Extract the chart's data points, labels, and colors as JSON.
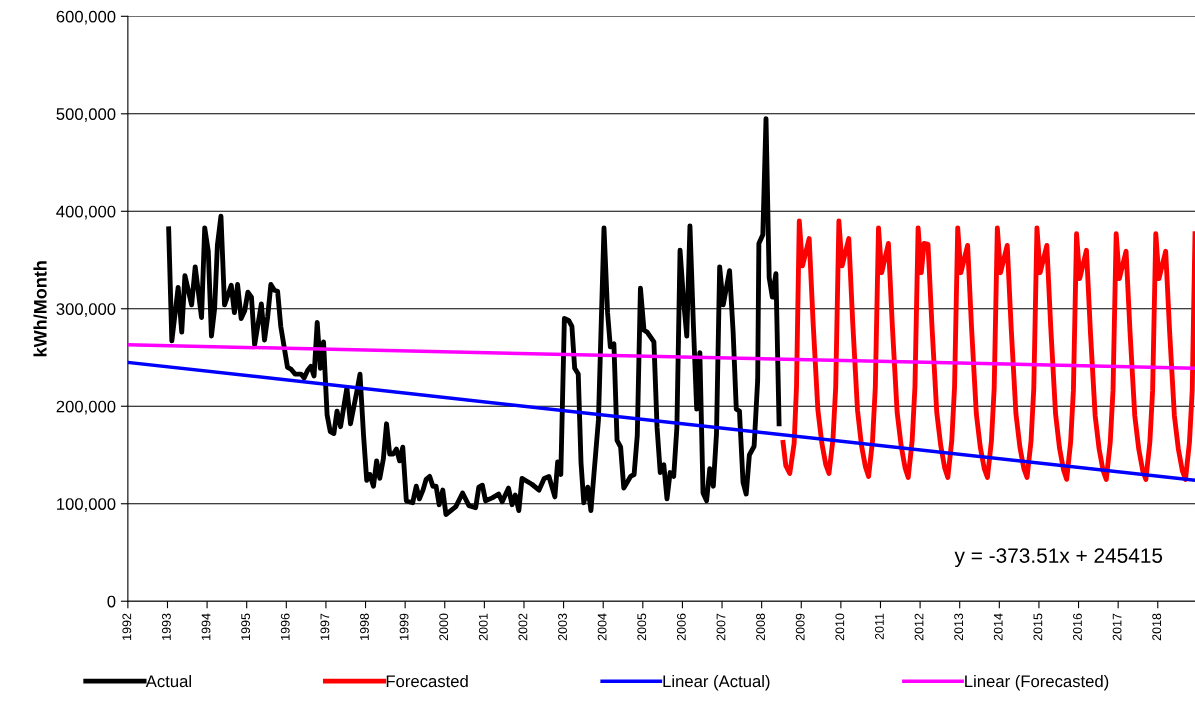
{
  "chart_data": {
    "type": "line",
    "ylabel": "kWh/Month",
    "xlim": [
      1992,
      2018.94
    ],
    "xticks": [
      1992,
      1993,
      1994,
      1995,
      1996,
      1997,
      1998,
      1999,
      2000,
      2001,
      2002,
      2003,
      2004,
      2005,
      2006,
      2007,
      2008,
      2009,
      2010,
      2011,
      2012,
      2013,
      2014,
      2015,
      2016,
      2017,
      2018
    ],
    "ylim": [
      0,
      600000
    ],
    "yticks": [
      0,
      {
        "value": 100000,
        "label": "100,000"
      },
      {
        "value": 200000,
        "label": "200,000"
      },
      {
        "value": 300000,
        "label": "300,000"
      },
      {
        "value": 400000,
        "label": "400,000"
      },
      {
        "value": 500000,
        "label": "500,000"
      },
      {
        "value": 600000,
        "label": "600,000"
      }
    ],
    "grid": "y",
    "legend": "bottom",
    "marker": "none",
    "line_style": "solid",
    "annotations": [
      "y = -373.51x + 245415"
    ],
    "series": [
      {
        "name": "Actual",
        "color": "#000000",
        "x": [
          1993.03,
          1993.11,
          1993.27,
          1993.36,
          1993.44,
          1993.61,
          1993.7,
          1993.86,
          1993.94,
          1994.03,
          1994.11,
          1994.19,
          1994.26,
          1994.35,
          1994.44,
          1994.61,
          1994.69,
          1994.77,
          1994.86,
          1994.95,
          1995.03,
          1995.12,
          1995.2,
          1995.37,
          1995.45,
          1995.53,
          1995.61,
          1995.7,
          1995.78,
          1995.86,
          1996.03,
          1996.12,
          1996.22,
          1996.37,
          1996.45,
          1996.54,
          1996.62,
          1996.7,
          1996.78,
          1996.86,
          1996.94,
          1997.03,
          1997.11,
          1997.2,
          1997.28,
          1997.37,
          1997.53,
          1997.62,
          1997.78,
          1997.86,
          1997.95,
          1998.03,
          1998.11,
          1998.2,
          1998.28,
          1998.36,
          1998.45,
          1998.53,
          1998.61,
          1998.7,
          1998.78,
          1998.86,
          1998.94,
          1999.03,
          1999.19,
          1999.28,
          1999.36,
          1999.45,
          1999.53,
          1999.62,
          1999.7,
          1999.78,
          1999.86,
          1999.95,
          2000.03,
          2000.28,
          2000.45,
          2000.61,
          2000.78,
          2000.86,
          2000.95,
          2001.03,
          2001.2,
          2001.36,
          2001.45,
          2001.61,
          2001.7,
          2001.78,
          2001.87,
          2001.95,
          2002.2,
          2002.38,
          2002.51,
          2002.63,
          2002.78,
          2002.85,
          2002.93,
          2003.02,
          2003.13,
          2003.21,
          2003.28,
          2003.37,
          2003.44,
          2003.51,
          2003.61,
          2003.69,
          2003.88,
          2004.02,
          2004.11,
          2004.18,
          2004.27,
          2004.35,
          2004.44,
          2004.52,
          2004.69,
          2004.78,
          2004.86,
          2004.94,
          2005.03,
          2005.11,
          2005.28,
          2005.36,
          2005.44,
          2005.53,
          2005.61,
          2005.69,
          2005.78,
          2005.86,
          2005.94,
          2006.03,
          2006.11,
          2006.19,
          2006.28,
          2006.36,
          2006.44,
          2006.52,
          2006.61,
          2006.69,
          2006.78,
          2006.86,
          2006.94,
          2007.03,
          2007.19,
          2007.28,
          2007.36,
          2007.44,
          2007.53,
          2007.61,
          2007.69,
          2007.81,
          2007.9,
          2007.93,
          2008.03,
          2008.11,
          2008.19,
          2008.27,
          2008.36,
          2008.44
        ],
        "values": [
          382000,
          267000,
          322000,
          276000,
          334000,
          304000,
          343000,
          291000,
          383000,
          359000,
          272000,
          300000,
          365000,
          395000,
          304000,
          324000,
          296000,
          325000,
          290000,
          298000,
          317000,
          312000,
          263000,
          305000,
          268000,
          292000,
          325000,
          319000,
          318000,
          282000,
          240000,
          238000,
          233000,
          233000,
          229000,
          237000,
          241000,
          231000,
          286000,
          239000,
          266000,
          191000,
          174000,
          172000,
          195000,
          179000,
          219000,
          182000,
          215000,
          233000,
          170000,
          124000,
          130000,
          118000,
          144000,
          126000,
          146000,
          182000,
          151000,
          151000,
          156000,
          144000,
          158000,
          103000,
          101000,
          118000,
          105000,
          114000,
          125000,
          128000,
          118000,
          118000,
          99000,
          114000,
          89000,
          97000,
          111000,
          98000,
          96000,
          117000,
          119000,
          103000,
          106000,
          110000,
          102000,
          116000,
          99000,
          109000,
          93000,
          126000,
          120000,
          114000,
          126000,
          128000,
          107000,
          143000,
          130000,
          290000,
          288000,
          282000,
          239000,
          233000,
          142000,
          101000,
          117000,
          93000,
          186000,
          383000,
          296000,
          261000,
          264000,
          165000,
          158000,
          116000,
          128000,
          130000,
          170000,
          321000,
          278000,
          276000,
          266000,
          178000,
          132000,
          140000,
          105000,
          132000,
          128000,
          178000,
          360000,
          308000,
          272000,
          385000,
          280000,
          197000,
          255000,
          111000,
          103000,
          136000,
          118000,
          172000,
          343000,
          304000,
          339000,
          276000,
          197000,
          195000,
          122000,
          110000,
          150000,
          159000,
          227000,
          367000,
          376000,
          495000,
          332000,
          312000,
          336000,
          182000
        ]
      },
      {
        "name": "Forecasted",
        "color": "#ff0000",
        "x": [
          2008.54,
          2008.61,
          2008.71,
          2008.82,
          2008.88,
          2008.95,
          2009.03,
          2009.2,
          2009.3,
          2009.42,
          2009.52,
          2009.62,
          2009.7,
          2009.8,
          2009.87,
          2009.95,
          2010.03,
          2010.2,
          2010.3,
          2010.42,
          2010.52,
          2010.62,
          2010.7,
          2010.8,
          2010.87,
          2010.95,
          2011.03,
          2011.2,
          2011.3,
          2011.42,
          2011.52,
          2011.62,
          2011.7,
          2011.8,
          2011.87,
          2011.95,
          2012.03,
          2012.1,
          2012.2,
          2012.3,
          2012.42,
          2012.52,
          2012.62,
          2012.7,
          2012.8,
          2012.87,
          2012.95,
          2013.03,
          2013.2,
          2013.3,
          2013.42,
          2013.52,
          2013.62,
          2013.7,
          2013.8,
          2013.87,
          2013.95,
          2014.03,
          2014.2,
          2014.3,
          2014.42,
          2014.52,
          2014.62,
          2014.7,
          2014.8,
          2014.87,
          2014.95,
          2015.03,
          2015.2,
          2015.3,
          2015.42,
          2015.52,
          2015.62,
          2015.7,
          2015.8,
          2015.87,
          2015.95,
          2016.03,
          2016.2,
          2016.3,
          2016.42,
          2016.52,
          2016.62,
          2016.7,
          2016.8,
          2016.87,
          2016.95,
          2017.03,
          2017.2,
          2017.3,
          2017.42,
          2017.52,
          2017.62,
          2017.7,
          2017.8,
          2017.87,
          2017.95,
          2018.03,
          2018.2,
          2018.3,
          2018.42,
          2018.52,
          2018.62,
          2018.7,
          2018.8,
          2018.87,
          2018.94
        ],
        "values": [
          163000,
          139000,
          131000,
          162000,
          220000,
          390000,
          344000,
          372000,
          285000,
          196000,
          162000,
          140000,
          131000,
          166000,
          220000,
          390000,
          344000,
          372000,
          285000,
          196000,
          160000,
          138000,
          128000,
          165000,
          220000,
          383000,
          337000,
          367000,
          282000,
          194000,
          160000,
          137000,
          127000,
          165000,
          220000,
          383000,
          337000,
          367000,
          366000,
          282000,
          194000,
          160000,
          137000,
          127000,
          165000,
          220000,
          383000,
          337000,
          365000,
          280000,
          192000,
          158000,
          136000,
          127000,
          164000,
          218000,
          383000,
          337000,
          365000,
          280000,
          192000,
          158000,
          136000,
          127000,
          164000,
          218000,
          383000,
          337000,
          365000,
          280000,
          192000,
          157000,
          135000,
          125000,
          163000,
          216000,
          377000,
          331000,
          360000,
          276000,
          190000,
          156000,
          134000,
          125000,
          163000,
          216000,
          377000,
          331000,
          359000,
          276000,
          190000,
          156000,
          134000,
          125000,
          163000,
          216000,
          377000,
          331000,
          359000,
          276000,
          190000,
          156000,
          134000,
          125000,
          163000,
          216000,
          377000
        ]
      },
      {
        "name": "Linear (Actual)",
        "color": "#0000ff",
        "x": [
          1992,
          2018.94
        ],
        "values": [
          245000,
          124000
        ]
      },
      {
        "name": "Linear (Forecasted)",
        "color": "#ff00ff",
        "x": [
          1992,
          2018.94
        ],
        "values": [
          263000,
          239000
        ]
      }
    ]
  }
}
